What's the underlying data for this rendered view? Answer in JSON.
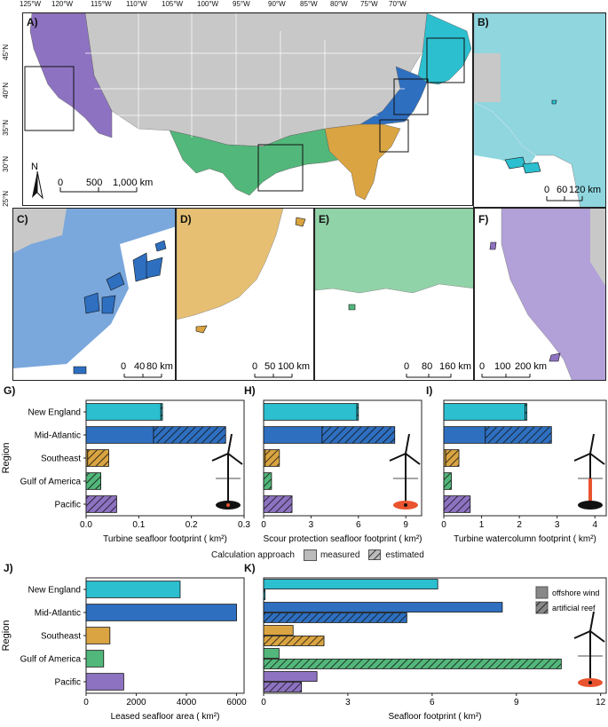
{
  "colors": {
    "new_england": "#2bbfcf",
    "mid_atlantic": "#2e6fc0",
    "southeast": "#d9a441",
    "gulf": "#52b77a",
    "pacific": "#8e72c2",
    "gray": "#c8c8c8",
    "ne_light": "#8fd6df",
    "ma_light": "#7aa7dc",
    "se_light": "#e6bf72",
    "gulf_light": "#91d3a8",
    "pacific_light": "#b2a0d8",
    "turbine": "#111111",
    "scour": "#e9542e"
  },
  "icons": {
    "turbine": "wind-turbine-icon",
    "north_arrow": "north-arrow-icon"
  },
  "map": {
    "label_a": "A)",
    "label_b": "B)",
    "label_c": "C)",
    "label_d": "D)",
    "label_e": "E)",
    "label_f": "F)",
    "lon_ticks": [
      "125°W",
      "120°W",
      "115°W",
      "110°W",
      "105°W",
      "100°W",
      "95°W",
      "90°W",
      "85°W",
      "80°W",
      "75°W",
      "70°W"
    ],
    "lat_ticks": [
      "45°N",
      "40°N",
      "35°N",
      "30°N",
      "25°N"
    ],
    "north": "N",
    "scale_a": [
      "0",
      "500",
      "1,000 km"
    ],
    "scale_b": [
      "0",
      "60",
      "120 km"
    ],
    "scale_c": [
      "0",
      "40",
      "80 km"
    ],
    "scale_d": [
      "0",
      "50",
      "100 km"
    ],
    "scale_e": [
      "0",
      "80",
      "160 km"
    ],
    "scale_f": [
      "0",
      "100",
      "200 km"
    ]
  },
  "chart_data": [
    {
      "type": "bar",
      "panel": "G)",
      "xlabel": "Turbine seafloor footprint ( km²)",
      "ylabel": "Region",
      "categories": [
        "New England",
        "Mid-Atlantic",
        "Southeast",
        "Gulf of America",
        "Pacific"
      ],
      "series": [
        {
          "name": "measured",
          "values": [
            0.142,
            0.128,
            0.003,
            0,
            0
          ]
        },
        {
          "name": "estimated",
          "values": [
            0.003,
            0.137,
            0.04,
            0.028,
            0.058
          ]
        }
      ],
      "xlim": [
        0,
        0.3
      ],
      "xticks": [
        "0.0",
        "0.1",
        "0.2",
        "0.3"
      ]
    },
    {
      "type": "bar",
      "panel": "H)",
      "xlabel": "Scour protection seafloor footprint ( km²)",
      "categories": [
        "New England",
        "Mid-Atlantic",
        "Southeast",
        "Gulf of America",
        "Pacific"
      ],
      "series": [
        {
          "name": "measured",
          "values": [
            5.9,
            3.7,
            0.1,
            0,
            0
          ]
        },
        {
          "name": "estimated",
          "values": [
            0.1,
            4.6,
            0.9,
            0.5,
            1.8
          ]
        }
      ],
      "xlim": [
        0,
        10
      ],
      "xticks": [
        "0",
        "3",
        "6",
        "9"
      ]
    },
    {
      "type": "bar",
      "panel": "I)",
      "xlabel": "Turbine watercolumn footprint ( km²)",
      "categories": [
        "New England",
        "Mid-Atlantic",
        "Southeast",
        "Gulf of America",
        "Pacific"
      ],
      "series": [
        {
          "name": "measured",
          "values": [
            2.15,
            1.1,
            0.05,
            0,
            0
          ]
        },
        {
          "name": "estimated",
          "values": [
            0.05,
            1.75,
            0.35,
            0.2,
            0.7
          ]
        }
      ],
      "xlim": [
        0,
        4.3
      ],
      "xticks": [
        "0",
        "1",
        "2",
        "3",
        "4"
      ]
    },
    {
      "type": "bar",
      "panel": "J)",
      "xlabel": "Leased seafloor area ( km²)",
      "ylabel": "Region",
      "categories": [
        "New England",
        "Mid-Atlantic",
        "Southeast",
        "Gulf of America",
        "Pacific"
      ],
      "values": [
        3750,
        6000,
        950,
        700,
        1500
      ],
      "xlim": [
        0,
        6300
      ],
      "xticks": [
        "0",
        "2000",
        "4000",
        "6000"
      ]
    },
    {
      "type": "bar",
      "panel": "K)",
      "xlabel": "Seafloor footprint ( km²)",
      "categories": [
        "New England",
        "Mid-Atlantic",
        "Southeast",
        "Gulf of America",
        "Pacific"
      ],
      "series": [
        {
          "name": "offshore wind",
          "values": [
            6.2,
            8.5,
            1.05,
            0.55,
            1.9
          ]
        },
        {
          "name": "artificial reef",
          "values": [
            0.05,
            5.1,
            2.15,
            10.6,
            1.35
          ]
        }
      ],
      "xlim": [
        0,
        12.2
      ],
      "xticks": [
        "0",
        "3",
        "6",
        "9",
        "12"
      ]
    }
  ],
  "legend_gh": {
    "title": "Calculation approach",
    "measured": "measured",
    "estimated": "estimated"
  },
  "legend_k": {
    "offshore": "offshore wind",
    "reef": "artificial reef"
  },
  "panel_labels": {
    "g": "G)",
    "h": "H)",
    "i": "I)",
    "j": "J)",
    "k": "K)"
  }
}
